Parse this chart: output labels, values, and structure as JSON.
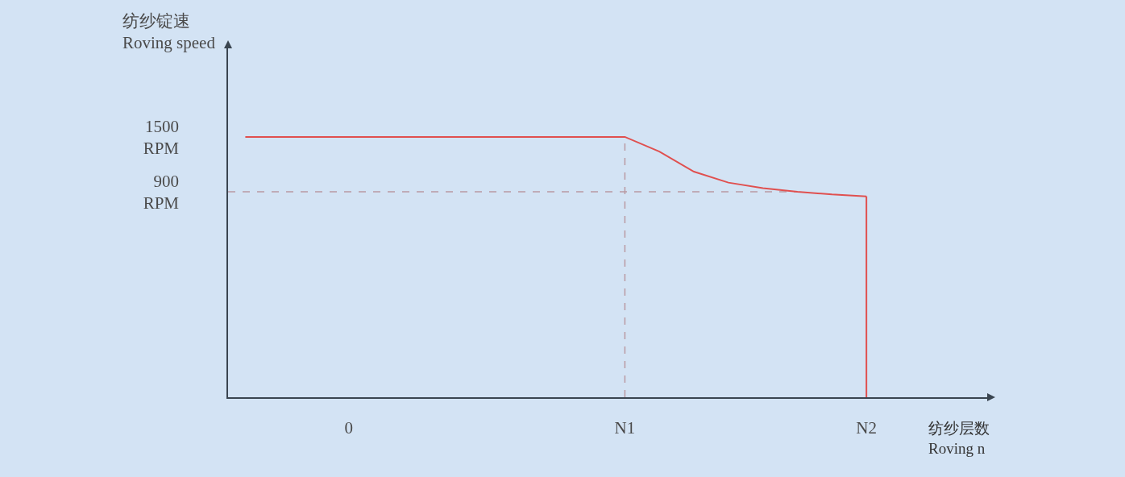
{
  "chart_data": {
    "type": "line",
    "xlabel": "纺纱层数\nRoving n",
    "ylabel": "纺纱锭速\nRoving speed",
    "categories": [
      null,
      null,
      null,
      "0",
      null,
      null,
      null,
      null,
      null,
      null,
      null,
      "N1",
      null,
      null,
      null,
      null,
      null,
      null,
      "N2",
      null,
      null,
      null
    ],
    "series": [
      {
        "color": "#e0504f",
        "values": [
          1500,
          1500,
          1500,
          1500,
          1500,
          1500,
          1500,
          1500,
          1500,
          1500,
          1500,
          1500,
          1340,
          1120,
          1000,
          940,
          900,
          870,
          850,
          null,
          null,
          null
        ]
      }
    ],
    "ylim": [
      -1350,
      2470
    ],
    "yticks": [
      {
        "value": 1500,
        "label": "1500\nRPM"
      },
      {
        "value": 900,
        "label": "900\nRPM"
      }
    ],
    "ref_lines": [
      {
        "axis": "y",
        "value": 900,
        "color": "#b99aa2",
        "line_style": "dashed"
      },
      {
        "axis": "x",
        "value": "N1",
        "color": "#b99aa2",
        "line_style": "dashed"
      },
      {
        "axis": "x",
        "value": "N2",
        "color": "#e0504f",
        "line_style": "solid"
      }
    ],
    "grid": false,
    "marker": "none",
    "line_style": "solid"
  }
}
